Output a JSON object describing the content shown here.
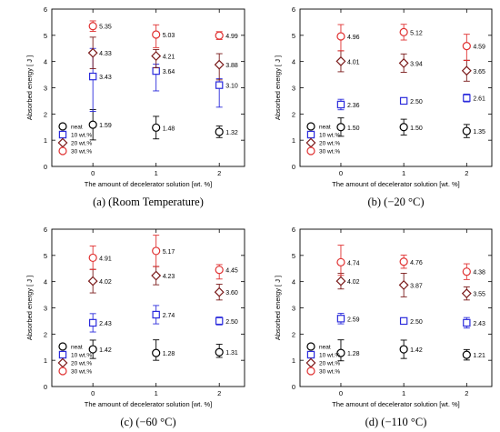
{
  "chart_data": [
    {
      "type": "scatter",
      "caption": "(a) (Room Temperature)",
      "xlabel": "The amount of decelerator solution [wt. %]",
      "ylabel": "Absorbed energy [ J ]",
      "x": [
        0,
        1,
        2
      ],
      "x_ticks": [
        "0",
        "1",
        "2"
      ],
      "xlim": [
        -0.65,
        2.4
      ],
      "ylim": [
        0,
        6
      ],
      "y_ticks": [
        "0",
        "1",
        "2",
        "3",
        "4",
        "5",
        "6"
      ],
      "legend": "lower-left",
      "series": [
        {
          "name": "neat",
          "marker": "circle",
          "color": "#000000",
          "values": [
            1.59,
            1.48,
            1.32
          ],
          "labels": [
            "1.59",
            "1.48",
            "1.32"
          ],
          "err_low": [
            0.58,
            0.43,
            0.22
          ],
          "err_high": [
            0.58,
            0.43,
            0.22
          ]
        },
        {
          "name": "10 wt.%",
          "marker": "square",
          "color": "#2b2bdc",
          "values": [
            3.43,
            3.64,
            3.1
          ],
          "labels": [
            "3.43",
            "3.64",
            "3.10"
          ],
          "err_low": [
            1.33,
            0.76,
            0.84
          ],
          "err_high": [
            1.07,
            0.26,
            0.25
          ]
        },
        {
          "name": "20 wt.%",
          "marker": "diamond",
          "color": "#7a1a1a",
          "values": [
            4.33,
            4.21,
            3.88
          ],
          "labels": [
            "4.33",
            "4.21",
            "3.88"
          ],
          "err_low": [
            0.6,
            0.45,
            0.58
          ],
          "err_high": [
            0.6,
            0.25,
            0.42
          ]
        },
        {
          "name": "30 wt.%",
          "marker": "circle",
          "color": "#e03131",
          "values": [
            5.35,
            5.03,
            4.99
          ],
          "labels": [
            "5.35",
            "5.03",
            "4.99"
          ],
          "err_low": [
            0.2,
            0.5,
            0.15
          ],
          "err_high": [
            0.2,
            0.37,
            0.15
          ]
        }
      ]
    },
    {
      "type": "scatter",
      "caption": "(b) (−20 °C)",
      "xlabel": "The amount of decelerator solution [wt. %]",
      "ylabel": "Absorbed energy [ J ]",
      "x": [
        0,
        1,
        2
      ],
      "x_ticks": [
        "0",
        "1",
        "2"
      ],
      "xlim": [
        -0.65,
        2.4
      ],
      "ylim": [
        0,
        6
      ],
      "y_ticks": [
        "0",
        "1",
        "2",
        "3",
        "4",
        "5",
        "6"
      ],
      "legend": "lower-left",
      "series": [
        {
          "name": "neat",
          "marker": "circle",
          "color": "#000000",
          "values": [
            1.5,
            1.5,
            1.35
          ],
          "labels": [
            "1.50",
            "1.50",
            "1.35"
          ],
          "err_low": [
            0.35,
            0.3,
            0.25
          ],
          "err_high": [
            0.35,
            0.3,
            0.25
          ]
        },
        {
          "name": "10 wt.%",
          "marker": "square",
          "color": "#2b2bdc",
          "values": [
            2.36,
            2.5,
            2.61
          ],
          "labels": [
            "2.36",
            "2.50",
            "2.61"
          ],
          "err_low": [
            0.2,
            0.1,
            0.15
          ],
          "err_high": [
            0.2,
            0.1,
            0.15
          ]
        },
        {
          "name": "20 wt.%",
          "marker": "diamond",
          "color": "#7a1a1a",
          "values": [
            4.01,
            3.94,
            3.65
          ],
          "labels": [
            "4.01",
            "3.94",
            "3.65"
          ],
          "err_low": [
            0.4,
            0.35,
            0.4
          ],
          "err_high": [
            0.4,
            0.35,
            0.4
          ]
        },
        {
          "name": "30 wt.%",
          "marker": "circle",
          "color": "#e03131",
          "values": [
            4.96,
            5.12,
            4.59
          ],
          "labels": [
            "4.96",
            "5.12",
            "4.59"
          ],
          "err_low": [
            0.55,
            0.3,
            0.55
          ],
          "err_high": [
            0.45,
            0.3,
            0.45
          ]
        }
      ]
    },
    {
      "type": "scatter",
      "caption": "(c) (−60 °C)",
      "xlabel": "The amount of decelerator solution [wt. %]",
      "ylabel": "Absorbed energy [ J ]",
      "x": [
        0,
        1,
        2
      ],
      "x_ticks": [
        "0",
        "1",
        "2"
      ],
      "xlim": [
        -0.65,
        2.4
      ],
      "ylim": [
        0,
        6
      ],
      "y_ticks": [
        "0",
        "1",
        "2",
        "3",
        "4",
        "5",
        "6"
      ],
      "legend": "lower-left",
      "series": [
        {
          "name": "neat",
          "marker": "circle",
          "color": "#000000",
          "values": [
            1.42,
            1.28,
            1.31
          ],
          "labels": [
            "1.42",
            "1.28",
            "1.31"
          ],
          "err_low": [
            0.35,
            0.28,
            0.2
          ],
          "err_high": [
            0.35,
            0.5,
            0.3
          ]
        },
        {
          "name": "10 wt.%",
          "marker": "square",
          "color": "#2b2bdc",
          "values": [
            2.43,
            2.74,
            2.5
          ],
          "labels": [
            "2.43",
            "2.74",
            "2.50"
          ],
          "err_low": [
            0.35,
            0.35,
            0.15
          ],
          "err_high": [
            0.35,
            0.35,
            0.15
          ]
        },
        {
          "name": "20 wt.%",
          "marker": "diamond",
          "color": "#7a1a1a",
          "values": [
            4.02,
            4.23,
            3.6
          ],
          "labels": [
            "4.02",
            "4.23",
            "3.60"
          ],
          "err_low": [
            0.45,
            0.35,
            0.3
          ],
          "err_high": [
            0.45,
            0.35,
            0.3
          ]
        },
        {
          "name": "30 wt.%",
          "marker": "circle",
          "color": "#e03131",
          "values": [
            4.91,
            5.17,
            4.45
          ],
          "labels": [
            "4.91",
            "5.17",
            "4.45"
          ],
          "err_low": [
            0.45,
            0.6,
            0.35
          ],
          "err_high": [
            0.45,
            0.6,
            0.2
          ]
        }
      ]
    },
    {
      "type": "scatter",
      "caption": "(d) (−110 °C)",
      "xlabel": "The amount of decelerator solution [wt. %]",
      "ylabel": "Absorbed energy [ J ]",
      "x": [
        0,
        1,
        2
      ],
      "x_ticks": [
        "0",
        "1",
        "2"
      ],
      "xlim": [
        -0.65,
        2.4
      ],
      "ylim": [
        0,
        6
      ],
      "y_ticks": [
        "0",
        "1",
        "2",
        "3",
        "4",
        "5",
        "6"
      ],
      "legend": "lower-left",
      "series": [
        {
          "name": "neat",
          "marker": "circle",
          "color": "#000000",
          "values": [
            1.28,
            1.42,
            1.21
          ],
          "labels": [
            "1.28",
            "1.42",
            "1.21"
          ],
          "err_low": [
            0.3,
            0.35,
            0.2
          ],
          "err_high": [
            0.5,
            0.35,
            0.2
          ]
        },
        {
          "name": "10 wt.%",
          "marker": "square",
          "color": "#2b2bdc",
          "values": [
            2.59,
            2.5,
            2.43
          ],
          "labels": [
            "2.59",
            "2.50",
            "2.43"
          ],
          "err_low": [
            0.2,
            0.05,
            0.2
          ],
          "err_high": [
            0.2,
            0.05,
            0.2
          ]
        },
        {
          "name": "20 wt.%",
          "marker": "diamond",
          "color": "#7a1a1a",
          "values": [
            4.02,
            3.87,
            3.55
          ],
          "labels": [
            "4.02",
            "3.87",
            "3.55"
          ],
          "err_low": [
            0.3,
            0.45,
            0.25
          ],
          "err_high": [
            0.3,
            0.45,
            0.25
          ]
        },
        {
          "name": "30 wt.%",
          "marker": "circle",
          "color": "#e03131",
          "values": [
            4.74,
            4.76,
            4.38
          ],
          "labels": [
            "4.74",
            "4.76",
            "4.38"
          ],
          "err_low": [
            0.5,
            0.25,
            0.3
          ],
          "err_high": [
            0.65,
            0.25,
            0.3
          ]
        }
      ]
    }
  ]
}
